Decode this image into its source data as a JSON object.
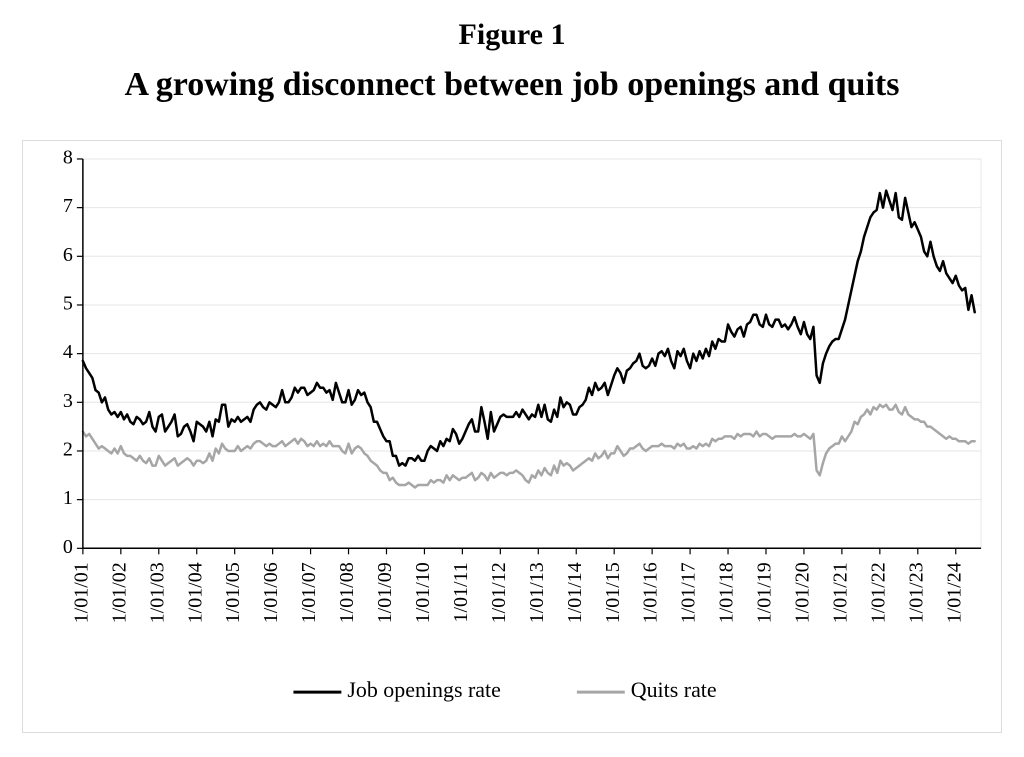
{
  "figure": {
    "number_label": "Figure 1",
    "title": "A growing disconnect between job openings and quits",
    "number_fontsize": 30,
    "title_fontsize": 34
  },
  "chart": {
    "type": "line",
    "background_color": "#ffffff",
    "frame_border_color": "#dcdcdc",
    "plot_border_color": "#e6e6e6",
    "grid_color": "#e6e6e6",
    "axis_line_color": "#000000",
    "ylim": [
      0,
      8
    ],
    "ytick_step": 1,
    "ytick_labels": [
      "0",
      "1",
      "2",
      "3",
      "4",
      "5",
      "6",
      "7",
      "8"
    ],
    "x_start_index": 0,
    "x_end_index": 284,
    "xtick_interval_points": 12,
    "xtick_labels": [
      "1/01/01",
      "1/01/02",
      "1/01/03",
      "1/01/04",
      "1/01/05",
      "1/01/06",
      "1/01/07",
      "1/01/08",
      "1/01/09",
      "1/01/10",
      "1/01/11",
      "1/01/12",
      "1/01/13",
      "1/01/14",
      "1/01/15",
      "1/01/16",
      "1/01/17",
      "1/01/18",
      "1/01/19",
      "1/01/20",
      "1/01/21",
      "1/01/22",
      "1/01/23",
      "1/01/24"
    ],
    "series": [
      {
        "name": "Job openings rate",
        "color": "#000000",
        "line_width": 2.5,
        "data": [
          3.85,
          3.7,
          3.6,
          3.5,
          3.25,
          3.2,
          3.0,
          3.1,
          2.85,
          2.75,
          2.8,
          2.7,
          2.8,
          2.65,
          2.75,
          2.6,
          2.55,
          2.7,
          2.65,
          2.55,
          2.6,
          2.8,
          2.5,
          2.4,
          2.7,
          2.75,
          2.4,
          2.5,
          2.6,
          2.75,
          2.3,
          2.35,
          2.5,
          2.55,
          2.4,
          2.2,
          2.6,
          2.55,
          2.5,
          2.4,
          2.6,
          2.3,
          2.65,
          2.6,
          2.95,
          2.95,
          2.5,
          2.65,
          2.6,
          2.7,
          2.6,
          2.65,
          2.7,
          2.6,
          2.85,
          2.95,
          3.0,
          2.9,
          2.85,
          3.0,
          2.95,
          2.9,
          3.0,
          3.25,
          3.0,
          3.0,
          3.1,
          3.3,
          3.2,
          3.3,
          3.3,
          3.15,
          3.2,
          3.25,
          3.4,
          3.3,
          3.3,
          3.2,
          3.25,
          3.05,
          3.4,
          3.2,
          3.0,
          3.0,
          3.25,
          2.95,
          3.05,
          3.25,
          3.15,
          3.2,
          3.0,
          2.9,
          2.6,
          2.6,
          2.45,
          2.3,
          2.2,
          2.2,
          1.9,
          1.9,
          1.7,
          1.75,
          1.7,
          1.85,
          1.85,
          1.8,
          1.9,
          1.8,
          1.8,
          2.0,
          2.1,
          2.05,
          2.0,
          2.2,
          2.1,
          2.25,
          2.2,
          2.45,
          2.35,
          2.15,
          2.25,
          2.4,
          2.55,
          2.65,
          2.4,
          2.4,
          2.9,
          2.6,
          2.25,
          2.8,
          2.4,
          2.55,
          2.7,
          2.75,
          2.7,
          2.7,
          2.7,
          2.8,
          2.7,
          2.85,
          2.75,
          2.65,
          2.75,
          2.7,
          2.95,
          2.7,
          2.95,
          2.65,
          2.6,
          2.85,
          2.7,
          3.1,
          2.9,
          3.0,
          2.95,
          2.75,
          2.75,
          2.9,
          2.95,
          3.05,
          3.3,
          3.15,
          3.4,
          3.25,
          3.3,
          3.4,
          3.15,
          3.35,
          3.55,
          3.7,
          3.6,
          3.4,
          3.65,
          3.7,
          3.8,
          3.85,
          4.0,
          3.75,
          3.7,
          3.75,
          3.9,
          3.75,
          4.0,
          4.05,
          3.95,
          4.1,
          3.85,
          3.7,
          4.05,
          3.95,
          4.1,
          3.85,
          3.7,
          4.0,
          3.85,
          4.05,
          3.9,
          4.1,
          3.95,
          4.25,
          4.1,
          4.3,
          4.25,
          4.25,
          4.6,
          4.45,
          4.35,
          4.5,
          4.55,
          4.35,
          4.6,
          4.65,
          4.8,
          4.8,
          4.6,
          4.55,
          4.8,
          4.6,
          4.55,
          4.7,
          4.7,
          4.55,
          4.6,
          4.5,
          4.6,
          4.75,
          4.55,
          4.4,
          4.65,
          4.4,
          4.3,
          4.55,
          3.55,
          3.4,
          3.8,
          4.0,
          4.15,
          4.25,
          4.3,
          4.3,
          4.5,
          4.7,
          5.0,
          5.3,
          5.6,
          5.9,
          6.1,
          6.4,
          6.6,
          6.8,
          6.9,
          6.95,
          7.3,
          7.0,
          7.35,
          7.15,
          6.95,
          7.3,
          6.8,
          6.75,
          7.2,
          6.9,
          6.6,
          6.7,
          6.55,
          6.4,
          6.1,
          6.0,
          6.3,
          6.0,
          5.8,
          5.7,
          5.9,
          5.65,
          5.55,
          5.45,
          5.6,
          5.4,
          5.3,
          5.35,
          4.9,
          5.2,
          4.85
        ]
      },
      {
        "name": "Quits rate",
        "color": "#a6a6a6",
        "line_width": 2.5,
        "data": [
          2.4,
          2.3,
          2.35,
          2.25,
          2.15,
          2.05,
          2.1,
          2.05,
          2.0,
          1.95,
          2.05,
          1.95,
          2.1,
          1.95,
          1.9,
          1.9,
          1.85,
          1.8,
          1.9,
          1.8,
          1.75,
          1.85,
          1.7,
          1.7,
          1.9,
          1.8,
          1.7,
          1.75,
          1.8,
          1.85,
          1.7,
          1.75,
          1.8,
          1.85,
          1.8,
          1.7,
          1.8,
          1.8,
          1.75,
          1.8,
          1.95,
          1.8,
          2.05,
          1.95,
          2.15,
          2.05,
          2.0,
          2.0,
          2.0,
          2.1,
          2.0,
          2.05,
          2.1,
          2.05,
          2.15,
          2.2,
          2.2,
          2.15,
          2.1,
          2.15,
          2.1,
          2.1,
          2.15,
          2.2,
          2.1,
          2.15,
          2.2,
          2.25,
          2.15,
          2.25,
          2.2,
          2.1,
          2.15,
          2.1,
          2.2,
          2.1,
          2.15,
          2.1,
          2.2,
          2.1,
          2.1,
          2.1,
          2.0,
          1.95,
          2.15,
          1.95,
          2.05,
          2.1,
          2.05,
          1.95,
          1.9,
          1.8,
          1.75,
          1.7,
          1.6,
          1.55,
          1.55,
          1.4,
          1.45,
          1.35,
          1.3,
          1.3,
          1.3,
          1.35,
          1.3,
          1.25,
          1.3,
          1.3,
          1.3,
          1.3,
          1.4,
          1.35,
          1.4,
          1.4,
          1.35,
          1.5,
          1.4,
          1.5,
          1.45,
          1.4,
          1.45,
          1.45,
          1.5,
          1.55,
          1.4,
          1.45,
          1.55,
          1.5,
          1.4,
          1.55,
          1.45,
          1.5,
          1.55,
          1.55,
          1.5,
          1.55,
          1.55,
          1.6,
          1.55,
          1.5,
          1.4,
          1.35,
          1.5,
          1.45,
          1.6,
          1.5,
          1.65,
          1.55,
          1.5,
          1.7,
          1.55,
          1.8,
          1.7,
          1.75,
          1.7,
          1.6,
          1.65,
          1.7,
          1.75,
          1.8,
          1.85,
          1.8,
          1.95,
          1.85,
          1.9,
          2.0,
          1.85,
          1.95,
          1.95,
          2.1,
          2.0,
          1.9,
          1.95,
          2.05,
          2.05,
          2.1,
          2.15,
          2.05,
          2.0,
          2.05,
          2.1,
          2.1,
          2.1,
          2.15,
          2.1,
          2.1,
          2.1,
          2.05,
          2.15,
          2.1,
          2.15,
          2.05,
          2.05,
          2.1,
          2.05,
          2.15,
          2.1,
          2.15,
          2.1,
          2.25,
          2.2,
          2.25,
          2.25,
          2.3,
          2.3,
          2.3,
          2.25,
          2.35,
          2.3,
          2.35,
          2.35,
          2.35,
          2.3,
          2.4,
          2.3,
          2.35,
          2.35,
          2.3,
          2.25,
          2.3,
          2.3,
          2.3,
          2.3,
          2.3,
          2.3,
          2.35,
          2.3,
          2.3,
          2.35,
          2.3,
          2.25,
          2.35,
          1.6,
          1.5,
          1.75,
          1.95,
          2.05,
          2.1,
          2.15,
          2.15,
          2.3,
          2.2,
          2.3,
          2.4,
          2.6,
          2.55,
          2.7,
          2.75,
          2.85,
          2.75,
          2.9,
          2.85,
          2.95,
          2.9,
          2.95,
          2.85,
          2.85,
          2.95,
          2.8,
          2.75,
          2.9,
          2.75,
          2.7,
          2.65,
          2.65,
          2.6,
          2.6,
          2.5,
          2.5,
          2.45,
          2.4,
          2.35,
          2.3,
          2.25,
          2.3,
          2.25,
          2.25,
          2.2,
          2.2,
          2.2,
          2.15,
          2.2,
          2.2
        ]
      }
    ],
    "legend": {
      "items": [
        {
          "label": "Job openings rate",
          "color": "#000000",
          "line_width": 3
        },
        {
          "label": "Quits rate",
          "color": "#a6a6a6",
          "line_width": 3
        }
      ],
      "font_size": 22,
      "position": "bottom"
    }
  }
}
